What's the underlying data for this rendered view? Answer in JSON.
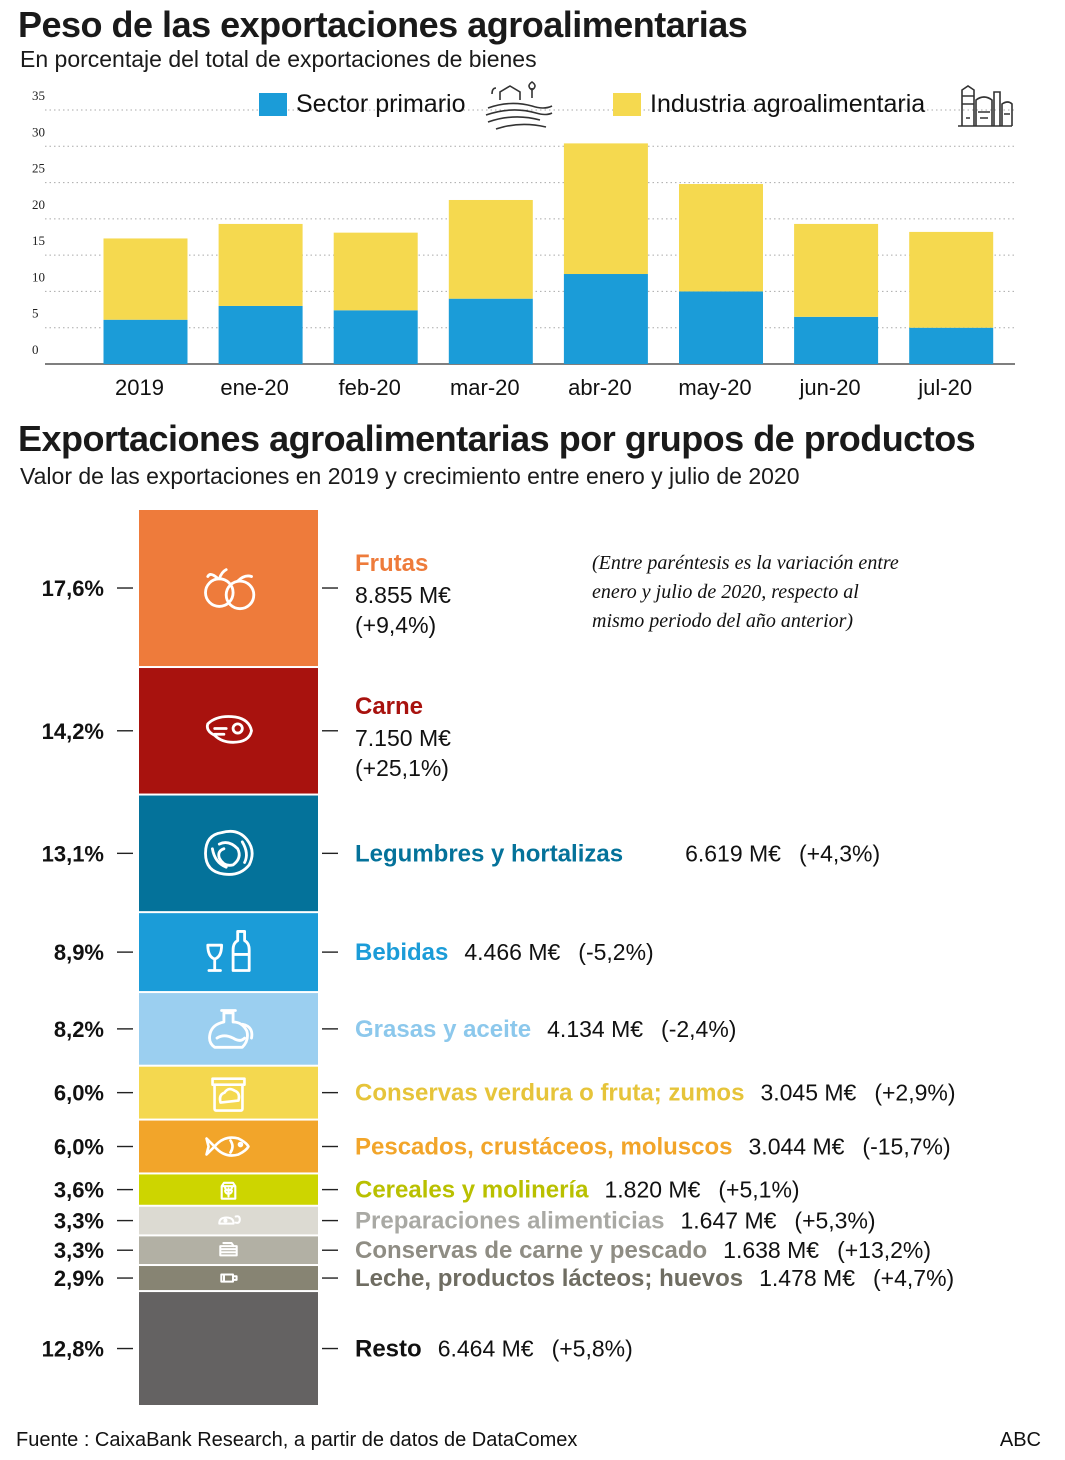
{
  "top": {
    "title": "Peso de las exportaciones agroalimentarias",
    "subtitle": "En porcentaje del total de exportaciones de bienes"
  },
  "bottom": {
    "title": "Exportaciones agroalimentarias por grupos de productos",
    "subtitle": "Valor de las exportaciones en 2019 y crecimiento entre enero y julio de 2020",
    "note": [
      "(Entre paréntesis es la variación entre",
      "enero y julio de 2020, respecto al",
      "mismo periodo del año anterior)"
    ]
  },
  "footer": {
    "source": "Fuente : CaixaBank Research, a partir de datos de DataComex",
    "credit": "ABC"
  },
  "colors": {
    "primario": "#1b9cd8",
    "industria": "#f5d94f",
    "grid": "#aaaaaa"
  },
  "chart_data": [
    {
      "type": "bar",
      "stacked": true,
      "categories": [
        "2019",
        "ene-20",
        "feb-20",
        "mar-20",
        "abr-20",
        "may-20",
        "jun-20",
        "jul-20"
      ],
      "series": [
        {
          "name": "Sector primario",
          "color": "#1b9cd8",
          "icon": "farm-fields-icon",
          "values": [
            6.1,
            8.0,
            7.4,
            9.0,
            12.4,
            10.0,
            6.5,
            5.0
          ]
        },
        {
          "name": "Industria agroalimentaria",
          "color": "#f5d94f",
          "icon": "factory-icon",
          "values": [
            11.2,
            11.3,
            10.7,
            13.6,
            18.0,
            14.8,
            12.8,
            13.2
          ]
        }
      ],
      "yticks": [
        "35",
        "30",
        "25",
        "20",
        "15",
        "10",
        "5",
        "0"
      ],
      "ylim": [
        0,
        35
      ],
      "grid": true,
      "legend": "top"
    },
    {
      "type": "bar",
      "stacked": true,
      "groups": [
        {
          "pct_label": "17,6%",
          "share": 17.6,
          "name": "Frutas",
          "value": "8.855 M€",
          "change": "(+9,4%)",
          "color": "#ee7b3b",
          "label_color": "#ee7b3b",
          "icon": "fruit-icon",
          "layout": "stacked"
        },
        {
          "pct_label": "14,2%",
          "share": 14.2,
          "name": "Carne",
          "value": "7.150 M€",
          "change": "(+25,1%)",
          "color": "#a8120e",
          "label_color": "#a8120e",
          "icon": "steak-icon",
          "layout": "stacked"
        },
        {
          "pct_label": "13,1%",
          "share": 13.1,
          "name": "Legumbres y hortalizas",
          "value": "6.619 M€",
          "change": "(+4,3%)",
          "color": "#04729a",
          "label_color": "#04729a",
          "icon": "cabbage-icon",
          "layout": "inline-wide"
        },
        {
          "pct_label": "8,9%",
          "share": 8.9,
          "name": "Bebidas",
          "value": "4.466 M€",
          "change": "(-5,2%)",
          "color": "#1b9cd8",
          "label_color": "#1b9cd8",
          "icon": "wine-bottle-icon",
          "layout": "inline"
        },
        {
          "pct_label": "8,2%",
          "share": 8.2,
          "name": "Grasas y aceite",
          "value": "4.134 M€",
          "change": "(-2,4%)",
          "color": "#9bcff0",
          "label_color": "#8cc8ec",
          "icon": "oil-jug-icon",
          "layout": "inline"
        },
        {
          "pct_label": "6,0%",
          "share": 6.0,
          "name": "Conservas verdura o fruta; zumos",
          "value": "3.045 M€",
          "change": "(+2,9%)",
          "color": "#f4d84f",
          "label_color": "#e6c43a",
          "icon": "jar-icon",
          "layout": "inline"
        },
        {
          "pct_label": "6,0%",
          "share": 6.0,
          "name": "Pescados, crustáceos, moluscos",
          "value": "3.044 M€",
          "change": "(-15,7%)",
          "color": "#f2a52a",
          "label_color": "#f2a52a",
          "icon": "fish-icon",
          "layout": "inline"
        },
        {
          "pct_label": "3,6%",
          "share": 3.6,
          "name": "Cereales y molinería",
          "value": "1.820 M€",
          "change": "(+5,1%)",
          "color": "#cdd500",
          "label_color": "#b9c000",
          "icon": "grain-icon",
          "layout": "inline"
        },
        {
          "pct_label": "3,3%",
          "share": 3.3,
          "name": "Preparaciones alimenticias",
          "value": "1.647 M€",
          "change": "(+5,3%)",
          "color": "#dcdad2",
          "label_color": "#a9a9a4",
          "icon": "prepared-food-icon",
          "layout": "inline"
        },
        {
          "pct_label": "3,3%",
          "share": 3.3,
          "name": "Conservas de carne y pescado",
          "value": "1.638 M€",
          "change": "(+13,2%)",
          "color": "#b2b0a4",
          "label_color": "#8f8d84",
          "icon": "tin-can-icon",
          "layout": "inline"
        },
        {
          "pct_label": "2,9%",
          "share": 2.9,
          "name": "Leche, productos lácteos; huevos",
          "value": "1.478 M€",
          "change": "(+4,7%)",
          "color": "#878473",
          "label_color": "#6f6d62",
          "icon": "milk-carton-icon",
          "layout": "inline"
        },
        {
          "pct_label": "12,8%",
          "share": 12.8,
          "name": "Resto",
          "value": "6.464 M€",
          "change": "(+5,8%)",
          "color": "#646262",
          "label_color": "#111111",
          "icon": "",
          "layout": "inline"
        }
      ]
    }
  ]
}
